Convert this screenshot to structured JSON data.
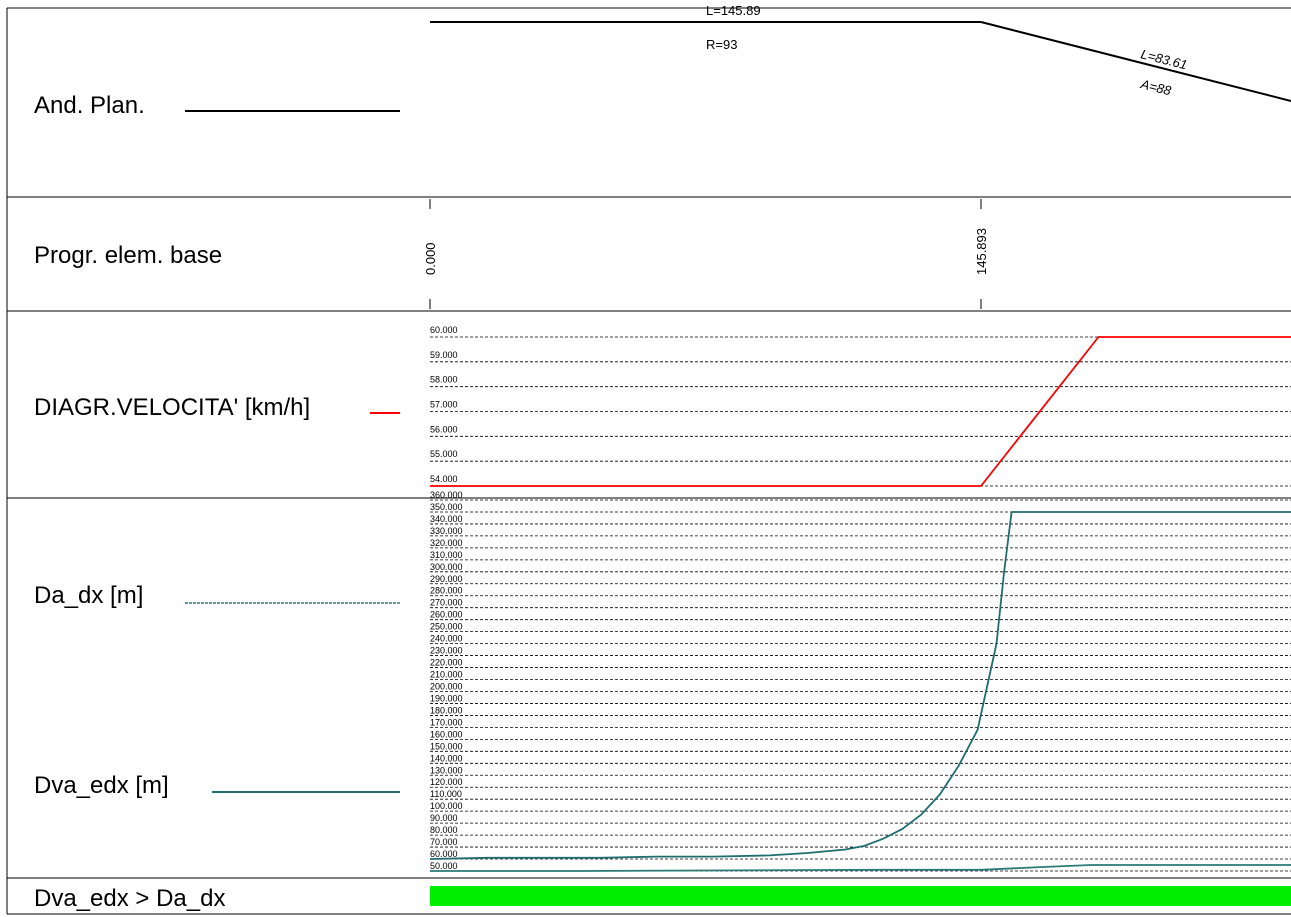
{
  "rows": {
    "plan_label": "And. Plan.",
    "progr_label": "Progr. elem. base",
    "speed_label": "DIAGR.VELOCITA' [km/h]",
    "da_label": "Da_dx [m]",
    "dva_label": "Dva_edx [m]",
    "check_label": "Dva_edx > Da_dx"
  },
  "plan": {
    "straight_length": "L=145.89",
    "straight_radius": "R=93",
    "clothoid_length": "L=83.61",
    "clothoid_param": "A=88"
  },
  "colors": {
    "speed_line": "#ff0000",
    "da_line": "#2a7a78",
    "dva_line": "#1f6e6e",
    "check_fill": "#00ee00"
  },
  "chart_data": [
    {
      "type": "line",
      "name": "progressive",
      "tick_labels": [
        "0.000",
        "145.893"
      ],
      "x": [
        0.0,
        145.893
      ]
    },
    {
      "type": "line",
      "title": "",
      "ylim": [
        54,
        60
      ],
      "y_ticks": [
        54,
        55,
        56,
        57,
        58,
        59,
        60
      ],
      "y_tick_labels": [
        "54.000",
        "55.000",
        "56.000",
        "57.000",
        "58.000",
        "59.000",
        "60.000"
      ],
      "grid": true,
      "series": [
        {
          "x": [
            0,
            145.893,
            177,
            230
          ],
          "values": [
            54,
            54,
            60,
            60
          ]
        }
      ]
    },
    {
      "type": "line",
      "ylim": [
        50,
        360
      ],
      "y_ticks": [
        50,
        60,
        70,
        80,
        90,
        100,
        110,
        120,
        130,
        140,
        150,
        160,
        170,
        180,
        190,
        200,
        210,
        220,
        230,
        240,
        250,
        260,
        270,
        280,
        290,
        300,
        310,
        320,
        330,
        340,
        350,
        360
      ],
      "y_tick_labels": [
        "50.000",
        "60.000",
        "70.000",
        "80.000",
        "90.000",
        "100.000",
        "110.000",
        "120.000",
        "130.000",
        "140.000",
        "150.000",
        "160.000",
        "170.000",
        "180.000",
        "190.000",
        "200.000",
        "210.000",
        "220.000",
        "230.000",
        "240.000",
        "250.000",
        "260.000",
        "270.000",
        "280.000",
        "290.000",
        "300.000",
        "310.000",
        "320.000",
        "330.000",
        "340.000",
        "350.000",
        "360.000"
      ],
      "grid": true,
      "series": [
        {
          "x": [
            0,
            15,
            30,
            45,
            60,
            75,
            90,
            100,
            110,
            115,
            120,
            125,
            130,
            135,
            140,
            145,
            150,
            152,
            154
          ],
          "values": [
            60,
            61,
            61,
            61,
            62,
            62,
            63,
            65,
            68,
            71,
            77,
            85,
            97,
            114,
            138,
            168,
            240,
            300,
            350
          ]
        },
        {
          "x": [
            154,
            230
          ],
          "values": [
            350,
            350
          ]
        },
        {
          "x": [
            0,
            40,
            80,
            120,
            145.893,
            160,
            175,
            200,
            230
          ],
          "values": [
            50,
            50,
            50.5,
            51,
            51,
            53,
            55,
            55,
            55
          ]
        }
      ]
    }
  ]
}
